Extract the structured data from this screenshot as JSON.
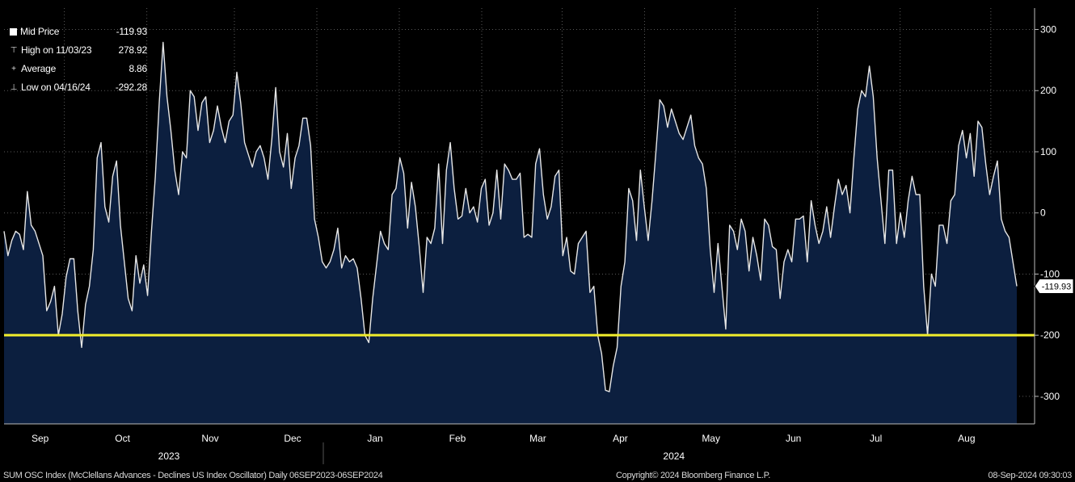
{
  "legend": {
    "mid_price_label": "Mid Price",
    "mid_price_value": "-119.93",
    "high_label": "High on 11/03/23",
    "high_value": "278.92",
    "average_label": "Average",
    "average_value": "8.86",
    "low_label": "Low on 04/16/24",
    "low_value": "-292.28"
  },
  "footer": {
    "description": "SUM OSC Index (McClellans Advances - Declines US Index Oscillator)  Daily 06SEP2023-06SEP2024",
    "copyright": "Copyright© 2024 Bloomberg Finance L.P.",
    "timestamp": "08-Sep-2024 09:30:03"
  },
  "chart_data": {
    "type": "area",
    "ylim": [
      -345,
      335
    ],
    "yticks": [
      300,
      200,
      100,
      0,
      -100,
      -200,
      -300
    ],
    "last_value_label": "-119.93",
    "reference_line": {
      "value": -200,
      "color": "#f2ee2c"
    },
    "colors": {
      "fill": "#0c1f3f",
      "line": "#e6e6e6",
      "background": "#000000",
      "grid": "#5a5a5a"
    },
    "months": [
      "Sep",
      "Oct",
      "Nov",
      "Dec",
      "Jan",
      "Feb",
      "Mar",
      "Apr",
      "May",
      "Jun",
      "Jul",
      "Aug"
    ],
    "years": [
      "2023",
      "2024"
    ],
    "grid": true,
    "series": [
      {
        "values": [
          -30,
          -70,
          -45,
          -30,
          -35,
          -60,
          35,
          -20,
          -30,
          -50,
          -70,
          -160,
          -145,
          -120,
          -200,
          -165,
          -105,
          -75,
          -75,
          -160,
          -220,
          -150,
          -120,
          -60,
          90,
          115,
          10,
          -15,
          60,
          85,
          -20,
          -80,
          -140,
          -160,
          -70,
          -115,
          -85,
          -135,
          -30,
          60,
          180,
          278.9,
          190,
          135,
          70,
          30,
          100,
          90,
          200,
          190,
          135,
          180,
          190,
          115,
          135,
          175,
          140,
          115,
          150,
          160,
          230,
          180,
          115,
          95,
          75,
          100,
          110,
          90,
          55,
          120,
          205,
          100,
          75,
          130,
          40,
          90,
          110,
          155,
          155,
          110,
          -10,
          -40,
          -80,
          -90,
          -80,
          -60,
          -25,
          -90,
          -70,
          -80,
          -75,
          -90,
          -140,
          -200,
          -212,
          -140,
          -85,
          -30,
          -50,
          -60,
          30,
          40,
          90,
          65,
          -25,
          50,
          10,
          -55,
          -130,
          -40,
          -50,
          -25,
          80,
          -50,
          70,
          115,
          40,
          -10,
          -5,
          40,
          0,
          10,
          -15,
          40,
          55,
          -20,
          0,
          70,
          -10,
          80,
          70,
          55,
          55,
          65,
          -40,
          -35,
          -40,
          80,
          105,
          30,
          -10,
          10,
          60,
          70,
          -70,
          -40,
          -95,
          -100,
          -50,
          -40,
          -30,
          -130,
          -120,
          -200,
          -230,
          -290,
          -292.3,
          -250,
          -220,
          -120,
          -80,
          40,
          20,
          -45,
          70,
          10,
          -45,
          20,
          100,
          185,
          175,
          140,
          170,
          150,
          130,
          120,
          140,
          160,
          110,
          90,
          80,
          40,
          -60,
          -130,
          -50,
          -120,
          -190,
          -20,
          -30,
          -60,
          -10,
          -30,
          -95,
          -40,
          -70,
          -110,
          -10,
          -20,
          -55,
          -60,
          -140,
          -80,
          -60,
          -80,
          -10,
          -10,
          -5,
          -80,
          20,
          -20,
          -50,
          -30,
          10,
          -40,
          10,
          55,
          30,
          45,
          0,
          90,
          170,
          200,
          190,
          240,
          190,
          90,
          20,
          -50,
          70,
          70,
          -50,
          0,
          -40,
          20,
          60,
          30,
          30,
          -120,
          -200,
          -100,
          -120,
          -20,
          -20,
          -50,
          20,
          30,
          110,
          135,
          90,
          130,
          60,
          150,
          140,
          80,
          30,
          60,
          85,
          -10,
          -30,
          -40,
          -80,
          -119.93
        ]
      }
    ]
  }
}
